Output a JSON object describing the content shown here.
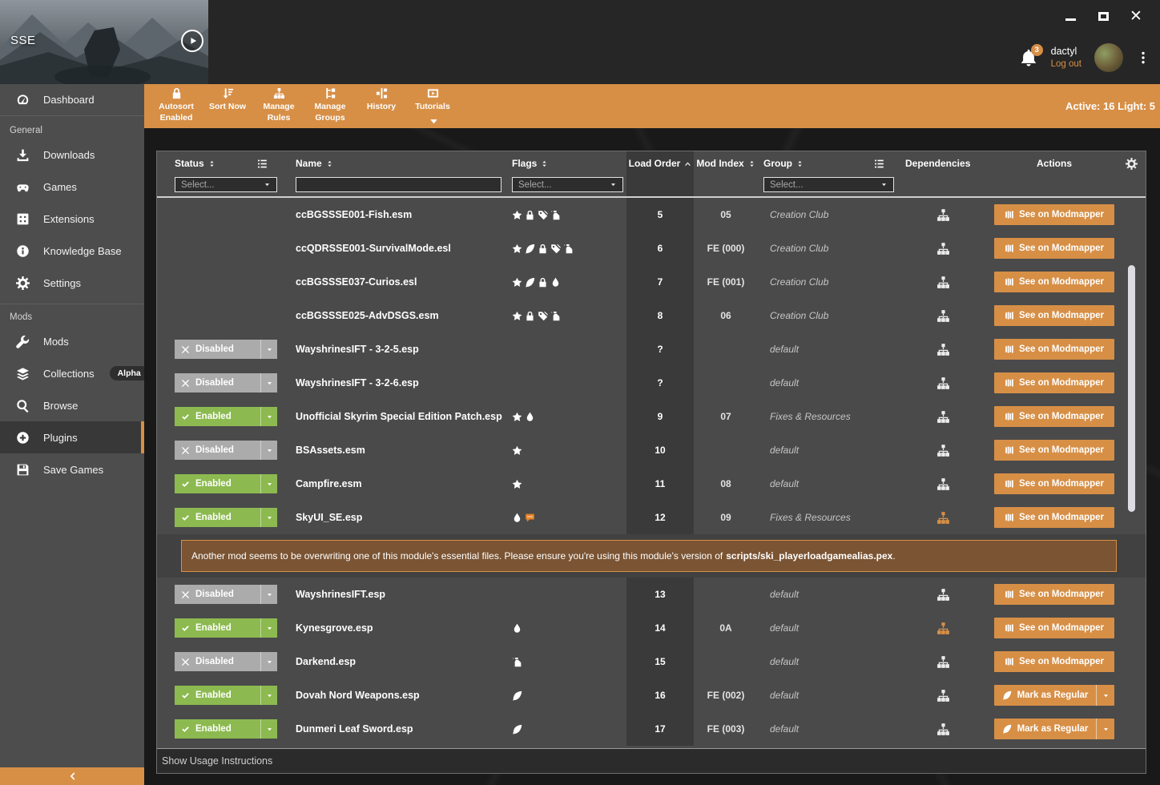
{
  "banner": {
    "game_label": "SSE"
  },
  "header": {
    "username": "dactyl",
    "logout_label": "Log out",
    "notification_count": "3"
  },
  "toolbar": {
    "items": [
      {
        "icon": "lock",
        "label": "Autosort Enabled"
      },
      {
        "icon": "sortnow",
        "label": "Sort Now"
      },
      {
        "icon": "sitemap",
        "label": "Manage Rules"
      },
      {
        "icon": "tree",
        "label": "Manage Groups"
      },
      {
        "icon": "history",
        "label": "History"
      },
      {
        "icon": "video",
        "label": "Tutorials",
        "caret": true
      }
    ],
    "status_summary": "Active: 16 Light: 5"
  },
  "sidebar": {
    "dashboard": {
      "icon": "dashboard",
      "label": "Dashboard"
    },
    "sections": [
      {
        "title": "General",
        "items": [
          {
            "icon": "download",
            "label": "Downloads"
          },
          {
            "icon": "gamepad",
            "label": "Games"
          },
          {
            "icon": "extensions",
            "label": "Extensions"
          },
          {
            "icon": "info",
            "label": "Knowledge Base"
          },
          {
            "icon": "gear",
            "label": "Settings"
          }
        ]
      },
      {
        "title": "Mods",
        "items": [
          {
            "icon": "wrench",
            "label": "Mods"
          },
          {
            "icon": "layers",
            "label": "Collections",
            "badge": "Alpha"
          },
          {
            "icon": "search",
            "label": "Browse"
          },
          {
            "icon": "plus-circle",
            "label": "Plugins",
            "active": true
          },
          {
            "icon": "floppy",
            "label": "Save Games"
          }
        ]
      }
    ]
  },
  "colors": {
    "accent_orange": "#D78F46",
    "enabled_green": "#8CBA50",
    "disabled_gray": "#ABABAB",
    "warning_brown": "#7A5433"
  },
  "table": {
    "columns": [
      {
        "label": "Status",
        "sort": "both",
        "group_toggle": true
      },
      {
        "label": "Name",
        "sort": "both"
      },
      {
        "label": "Flags",
        "sort": "both"
      },
      {
        "label": "Load Order",
        "sort": "asc",
        "dark": true
      },
      {
        "label": "Mod Index",
        "sort": "both"
      },
      {
        "label": "Group",
        "sort": "both",
        "group_toggle": true
      },
      {
        "label": "Dependencies"
      },
      {
        "label": "Actions"
      }
    ],
    "filters": {
      "status": {
        "placeholder": "Select..."
      },
      "name": {
        "value": "",
        "placeholder": ""
      },
      "flags": {
        "placeholder": "Select..."
      },
      "group": {
        "placeholder": "Select..."
      }
    },
    "rows": [
      {
        "name": "ccBGSSSE001-Fish.esm",
        "status": null,
        "flags": [
          "master",
          "locked",
          "tags",
          "clean"
        ],
        "load_order": "5",
        "mod_index": "05",
        "group": "Creation Club",
        "dep_orange": false,
        "action": "See on Modmapper",
        "action_type": "modmapper"
      },
      {
        "name": "ccQDRSSE001-SurvivalMode.esl",
        "status": null,
        "flags": [
          "master",
          "light",
          "locked",
          "tags",
          "clean"
        ],
        "load_order": "6",
        "mod_index": "FE (000)",
        "group": "Creation Club",
        "dep_orange": false,
        "action": "See on Modmapper",
        "action_type": "modmapper"
      },
      {
        "name": "ccBGSSSE037-Curios.esl",
        "status": null,
        "flags": [
          "master",
          "light",
          "locked",
          "droplet"
        ],
        "load_order": "7",
        "mod_index": "FE (001)",
        "group": "Creation Club",
        "dep_orange": false,
        "action": "See on Modmapper",
        "action_type": "modmapper"
      },
      {
        "name": "ccBGSSSE025-AdvDSGS.esm",
        "status": null,
        "flags": [
          "master",
          "locked",
          "tags",
          "clean"
        ],
        "load_order": "8",
        "mod_index": "06",
        "group": "Creation Club",
        "dep_orange": false,
        "action": "See on Modmapper",
        "action_type": "modmapper"
      },
      {
        "name": "WayshrinesIFT - 3-2-5.esp",
        "status": "Disabled",
        "flags": [],
        "load_order": "?",
        "mod_index": "",
        "group": "default",
        "dep_orange": false,
        "action": "See on Modmapper",
        "action_type": "modmapper"
      },
      {
        "name": "WayshrinesIFT - 3-2-6.esp",
        "status": "Disabled",
        "flags": [],
        "load_order": "?",
        "mod_index": "",
        "group": "default",
        "dep_orange": false,
        "action": "See on Modmapper",
        "action_type": "modmapper"
      },
      {
        "name": "Unofficial Skyrim Special Edition Patch.esp",
        "status": "Enabled",
        "flags": [
          "master",
          "droplet"
        ],
        "load_order": "9",
        "mod_index": "07",
        "group": "Fixes & Resources",
        "dep_orange": false,
        "action": "See on Modmapper",
        "action_type": "modmapper"
      },
      {
        "name": "BSAssets.esm",
        "status": "Disabled",
        "flags": [
          "master"
        ],
        "load_order": "10",
        "mod_index": "",
        "group": "default",
        "dep_orange": false,
        "action": "See on Modmapper",
        "action_type": "modmapper"
      },
      {
        "name": "Campfire.esm",
        "status": "Enabled",
        "flags": [
          "master"
        ],
        "load_order": "11",
        "mod_index": "08",
        "group": "default",
        "dep_orange": false,
        "action": "See on Modmapper",
        "action_type": "modmapper"
      },
      {
        "name": "SkyUI_SE.esp",
        "status": "Enabled",
        "flags": [
          "droplet",
          "comment"
        ],
        "load_order": "12",
        "mod_index": "09",
        "group": "Fixes & Resources",
        "dep_orange": true,
        "action": "See on Modmapper",
        "action_type": "modmapper",
        "has_warning": true
      },
      {
        "name": "WayshrinesIFT.esp",
        "status": "Disabled",
        "flags": [],
        "load_order": "13",
        "mod_index": "",
        "group": "default",
        "dep_orange": false,
        "action": "See on Modmapper",
        "action_type": "modmapper"
      },
      {
        "name": "Kynesgrove.esp",
        "status": "Enabled",
        "flags": [
          "droplet"
        ],
        "load_order": "14",
        "mod_index": "0A",
        "group": "default",
        "dep_orange": true,
        "action": "See on Modmapper",
        "action_type": "modmapper"
      },
      {
        "name": "Darkend.esp",
        "status": "Disabled",
        "flags": [
          "clean"
        ],
        "load_order": "15",
        "mod_index": "",
        "group": "default",
        "dep_orange": false,
        "action": "See on Modmapper",
        "action_type": "modmapper"
      },
      {
        "name": "Dovah Nord Weapons.esp",
        "status": "Enabled",
        "flags": [
          "light"
        ],
        "load_order": "16",
        "mod_index": "FE (002)",
        "group": "default",
        "dep_orange": false,
        "action": "Mark as Regular",
        "action_type": "mark-regular"
      },
      {
        "name": "Dunmeri Leaf Sword.esp",
        "status": "Enabled",
        "flags": [
          "light"
        ],
        "load_order": "17",
        "mod_index": "FE (003)",
        "group": "default",
        "dep_orange": false,
        "action": "Mark as Regular",
        "action_type": "mark-regular"
      }
    ],
    "warning": {
      "prefix": "Another mod seems to be overwriting one of this module's essential files. Please ensure you're using this module's version of ",
      "file": "scripts/ski_playerloadgamealias.pex",
      "suffix": "."
    },
    "footer_label": "Show Usage Instructions"
  }
}
